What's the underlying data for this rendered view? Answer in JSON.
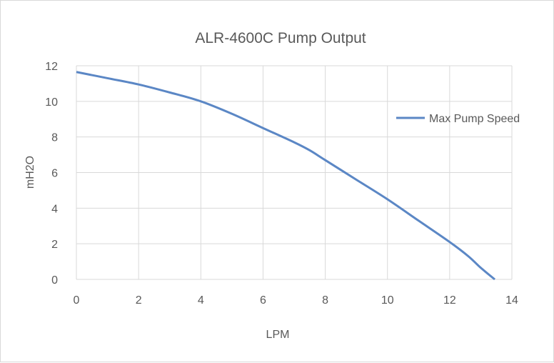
{
  "chart_data": {
    "type": "line",
    "title": "ALR-4600C  Pump Output",
    "xlabel": "LPM",
    "ylabel": "mH2O",
    "xlim": [
      0,
      14
    ],
    "ylim": [
      0,
      12
    ],
    "x_ticks": [
      "0",
      "2",
      "4",
      "6",
      "8",
      "10",
      "12",
      "14"
    ],
    "y_ticks": [
      "0",
      "2",
      "4",
      "6",
      "8",
      "10",
      "12"
    ],
    "grid": true,
    "legend_position": "right",
    "series": [
      {
        "name": "Max Pump Speed",
        "color": "#5b87c5",
        "x": [
          0,
          1,
          2,
          3,
          4,
          5,
          6,
          7,
          7.5,
          8,
          9,
          10,
          11,
          12,
          12.6,
          13,
          13.45
        ],
        "y": [
          11.65,
          11.3,
          10.95,
          10.5,
          10.0,
          9.3,
          8.5,
          7.7,
          7.25,
          6.7,
          5.6,
          4.5,
          3.3,
          2.1,
          1.3,
          0.65,
          0.0
        ]
      }
    ]
  }
}
